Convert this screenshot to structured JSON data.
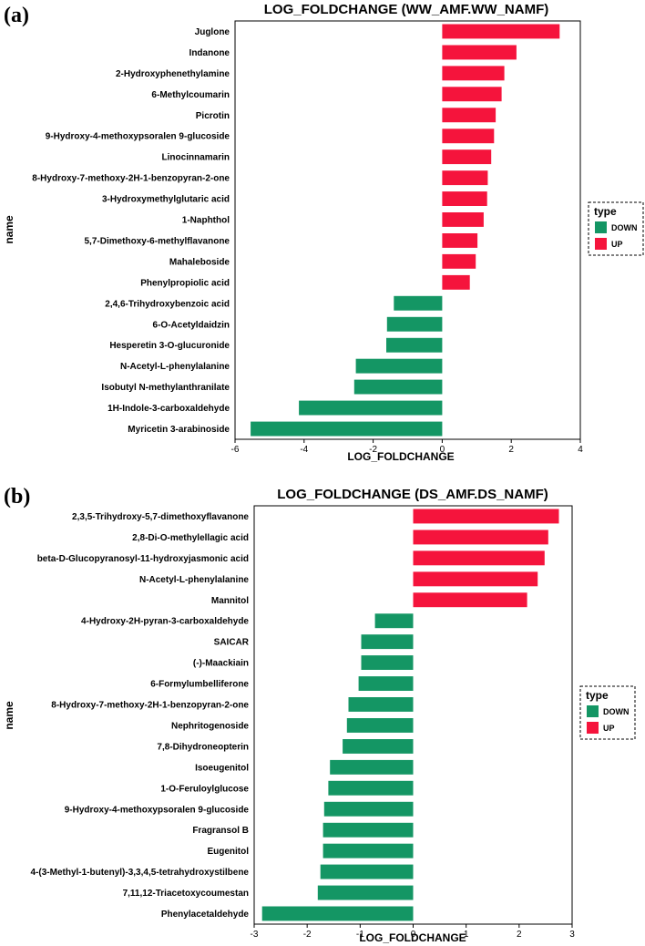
{
  "colors": {
    "up": "#F5143C",
    "down": "#149664",
    "axis": "#000000"
  },
  "chart_data": [
    {
      "type": "bar",
      "orientation": "horizontal",
      "panel": "(a)",
      "title": "LOG_FOLDCHANGE (WW_AMF.WW_NAMF)",
      "xlabel": "LOG_FOLDCHANGE",
      "ylabel": "name",
      "xlim": [
        -6,
        4
      ],
      "xticks": [
        -6,
        -4,
        -2,
        0,
        2,
        4
      ],
      "legend": {
        "title": "type",
        "entries": [
          "DOWN",
          "UP"
        ],
        "position": "right"
      },
      "categories": [
        "Juglone",
        "Indanone",
        "2-Hydroxyphenethylamine",
        "6-Methylcoumarin",
        "Picrotin",
        "9-Hydroxy-4-methoxypsoralen 9-glucoside",
        "Linocinnamarin",
        "8-Hydroxy-7-methoxy-2H-1-benzopyran-2-one",
        "3-Hydroxymethylglutaric acid",
        "1-Naphthol",
        "5,7-Dimethoxy-6-methylflavanone",
        "Mahaleboside",
        "Phenylpropiolic acid",
        "2,4,6-Trihydroxybenzoic acid",
        "6-O-Acetyldaidzin",
        "Hesperetin 3-O-glucuronide",
        "N-Acetyl-L-phenylalanine",
        "Isobutyl N-methylanthranilate",
        "1H-Indole-3-carboxaldehyde",
        "Myricetin 3-arabinoside"
      ],
      "values": [
        3.4,
        2.15,
        1.8,
        1.72,
        1.55,
        1.5,
        1.42,
        1.32,
        1.3,
        1.2,
        1.02,
        0.97,
        0.8,
        -1.4,
        -1.6,
        -1.62,
        -2.5,
        -2.55,
        -4.15,
        -5.55
      ],
      "types": [
        "UP",
        "UP",
        "UP",
        "UP",
        "UP",
        "UP",
        "UP",
        "UP",
        "UP",
        "UP",
        "UP",
        "UP",
        "UP",
        "DOWN",
        "DOWN",
        "DOWN",
        "DOWN",
        "DOWN",
        "DOWN",
        "DOWN"
      ]
    },
    {
      "type": "bar",
      "orientation": "horizontal",
      "panel": "(b)",
      "title": "LOG_FOLDCHANGE (DS_AMF.DS_NAMF)",
      "xlabel": "LOG_FOLDCHANGE",
      "ylabel": "name",
      "xlim": [
        -3,
        3
      ],
      "xticks": [
        -3,
        -2,
        -1,
        0,
        1,
        2,
        3
      ],
      "legend": {
        "title": "type",
        "entries": [
          "DOWN",
          "UP"
        ],
        "position": "right"
      },
      "categories": [
        "2,3,5-Trihydroxy-5,7-dimethoxyflavanone",
        "2,8-Di-O-methylellagic acid",
        "beta-D-Glucopyranosyl-11-hydroxyjasmonic acid",
        "N-Acetyl-L-phenylalanine",
        "Mannitol",
        "4-Hydroxy-2H-pyran-3-carboxaldehyde",
        "SAICAR",
        "(-)-Maackiain",
        "6-Formylumbelliferone",
        "8-Hydroxy-7-methoxy-2H-1-benzopyran-2-one",
        "Nephritogenoside",
        "7,8-Dihydroneopterin",
        "Isoeugenitol",
        "1-O-Feruloylglucose",
        "9-Hydroxy-4-methoxypsoralen 9-glucoside",
        "Fragransol B",
        "Eugenitol",
        "4-(3-Methyl-1-butenyl)-3,3,4,5-tetrahydroxystilbene",
        "7,11,12-Triacetoxycoumestan",
        "Phenylacetaldehyde"
      ],
      "values": [
        2.75,
        2.55,
        2.48,
        2.35,
        2.15,
        -0.72,
        -0.98,
        -0.98,
        -1.03,
        -1.22,
        -1.25,
        -1.33,
        -1.57,
        -1.6,
        -1.68,
        -1.7,
        -1.7,
        -1.75,
        -1.8,
        -2.85
      ],
      "types": [
        "UP",
        "UP",
        "UP",
        "UP",
        "UP",
        "DOWN",
        "DOWN",
        "DOWN",
        "DOWN",
        "DOWN",
        "DOWN",
        "DOWN",
        "DOWN",
        "DOWN",
        "DOWN",
        "DOWN",
        "DOWN",
        "DOWN",
        "DOWN",
        "DOWN"
      ]
    }
  ]
}
